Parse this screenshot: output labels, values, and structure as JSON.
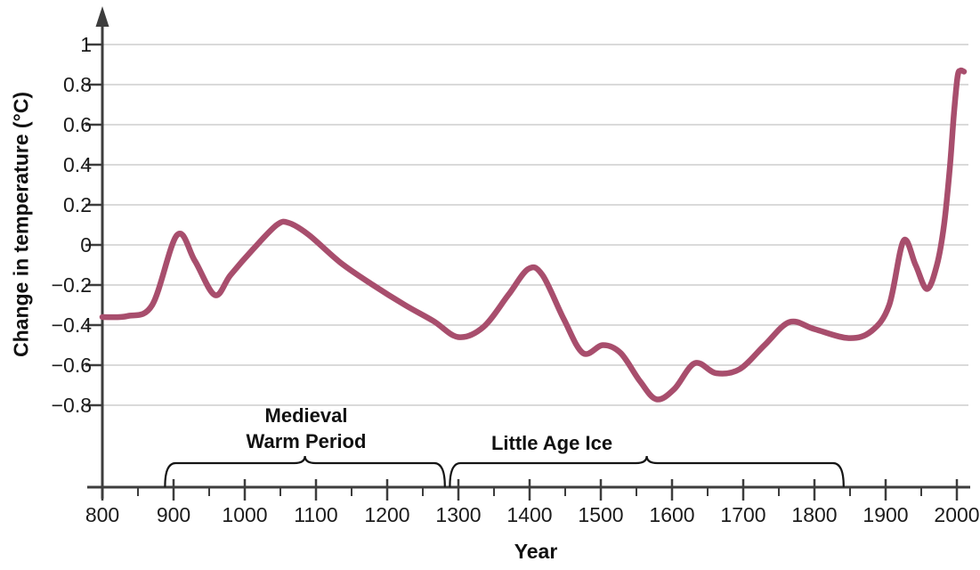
{
  "chart_data": {
    "type": "line",
    "title": "",
    "xlabel": "Year",
    "ylabel": "Change in temperature (°C)",
    "x_ticks": [
      800,
      900,
      1000,
      1100,
      1200,
      1300,
      1400,
      1500,
      1600,
      1700,
      1800,
      1900,
      2000
    ],
    "x_tick_labels": [
      "800",
      "900",
      "1000",
      "1100",
      "1200",
      "1300",
      "1400",
      "1500",
      "1600",
      "1700",
      "1800",
      "1900",
      "2000"
    ],
    "x_minor_ticks": [
      850,
      950,
      1050,
      1150,
      1250,
      1350,
      1450,
      1550,
      1650,
      1750,
      1850,
      1950
    ],
    "y_ticks": [
      1,
      0.8,
      0.6,
      0.4,
      0.2,
      0,
      -0.2,
      -0.4,
      -0.6,
      -0.8
    ],
    "y_tick_labels": [
      "1",
      "0.8",
      "0.6",
      "0.4",
      "0.2",
      "0",
      "−0.2",
      "−0.4",
      "−0.6",
      "−0.8"
    ],
    "xlim": [
      800,
      2010
    ],
    "ylim": [
      -0.95,
      1.1
    ],
    "grid": "horizontal",
    "legend": "none",
    "series": [
      {
        "name": "Change in temperature",
        "points": [
          [
            800,
            -0.36
          ],
          [
            835,
            -0.355
          ],
          [
            870,
            -0.3
          ],
          [
            905,
            0.05
          ],
          [
            930,
            -0.08
          ],
          [
            958,
            -0.25
          ],
          [
            980,
            -0.15
          ],
          [
            1012,
            -0.02
          ],
          [
            1045,
            0.1
          ],
          [
            1062,
            0.11
          ],
          [
            1090,
            0.05
          ],
          [
            1135,
            -0.09
          ],
          [
            1180,
            -0.2
          ],
          [
            1225,
            -0.3
          ],
          [
            1265,
            -0.38
          ],
          [
            1300,
            -0.46
          ],
          [
            1335,
            -0.41
          ],
          [
            1370,
            -0.25
          ],
          [
            1398,
            -0.12
          ],
          [
            1418,
            -0.15
          ],
          [
            1448,
            -0.37
          ],
          [
            1475,
            -0.54
          ],
          [
            1503,
            -0.5
          ],
          [
            1528,
            -0.54
          ],
          [
            1555,
            -0.68
          ],
          [
            1578,
            -0.77
          ],
          [
            1603,
            -0.72
          ],
          [
            1632,
            -0.59
          ],
          [
            1662,
            -0.64
          ],
          [
            1695,
            -0.62
          ],
          [
            1730,
            -0.5
          ],
          [
            1765,
            -0.385
          ],
          [
            1800,
            -0.42
          ],
          [
            1848,
            -0.465
          ],
          [
            1880,
            -0.43
          ],
          [
            1905,
            -0.3
          ],
          [
            1925,
            0.02
          ],
          [
            1942,
            -0.1
          ],
          [
            1958,
            -0.22
          ],
          [
            1972,
            -0.1
          ],
          [
            1982,
            0.1
          ],
          [
            1990,
            0.38
          ],
          [
            1996,
            0.66
          ],
          [
            2001,
            0.84
          ],
          [
            2005,
            0.87
          ],
          [
            2010,
            0.865
          ]
        ]
      }
    ],
    "annotations": [
      {
        "id": "medieval-warm-period",
        "lines": [
          "Medieval",
          "Warm Period"
        ],
        "brace_year_span": [
          888,
          1281
        ]
      },
      {
        "id": "little-age-ice",
        "lines": [
          "Little Age Ice"
        ],
        "brace_year_span": [
          1288,
          1841
        ]
      }
    ],
    "colors": {
      "curve": "#a84e6d",
      "grid": "#c3c3c3",
      "axis": "#3d3d3d",
      "text": "#1b1b1b",
      "brace": "#151515"
    }
  }
}
